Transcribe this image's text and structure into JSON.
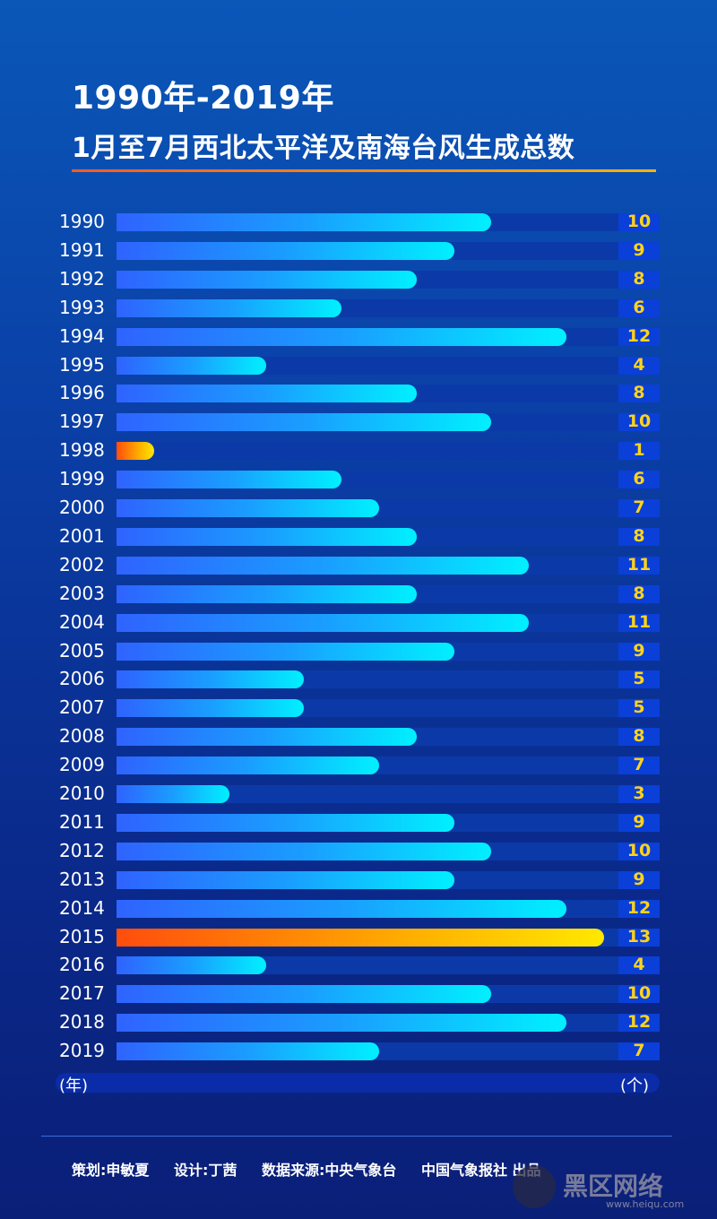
{
  "title_line1": "1990年-2019年",
  "title_line2": "1月至7月西北太平洋及南海台风生成总数",
  "chart_data": {
    "type": "bar",
    "orientation": "horizontal",
    "categories": [
      "1990",
      "1991",
      "1992",
      "1993",
      "1994",
      "1995",
      "1996",
      "1997",
      "1998",
      "1999",
      "2000",
      "2001",
      "2002",
      "2003",
      "2004",
      "2005",
      "2006",
      "2007",
      "2008",
      "2009",
      "2010",
      "2011",
      "2012",
      "2013",
      "2014",
      "2015",
      "2016",
      "2017",
      "2018",
      "2019"
    ],
    "values": [
      10,
      9,
      8,
      6,
      12,
      4,
      8,
      10,
      1,
      6,
      7,
      8,
      11,
      8,
      11,
      9,
      5,
      5,
      8,
      7,
      3,
      9,
      10,
      9,
      12,
      13,
      4,
      10,
      12,
      7
    ],
    "highlighted": [
      "1998",
      "2015"
    ],
    "xlim": [
      0,
      13
    ],
    "xlabel": "(个)",
    "ylabel": "(年)",
    "colors": {
      "bar_start": "#2f63ff",
      "bar_end": "#00f0ff",
      "highlight_start": "#ff4d0d",
      "highlight_end": "#ffe800",
      "value_text": "#ffd31a"
    }
  },
  "credits": {
    "planner": "策划:申敏夏",
    "designer": "设计:丁茜",
    "source": "数据来源:中央气象台",
    "producer": "中国气象报社 出品"
  },
  "watermark": {
    "main": "黑区网络",
    "sub": "www.heiqu.com"
  }
}
